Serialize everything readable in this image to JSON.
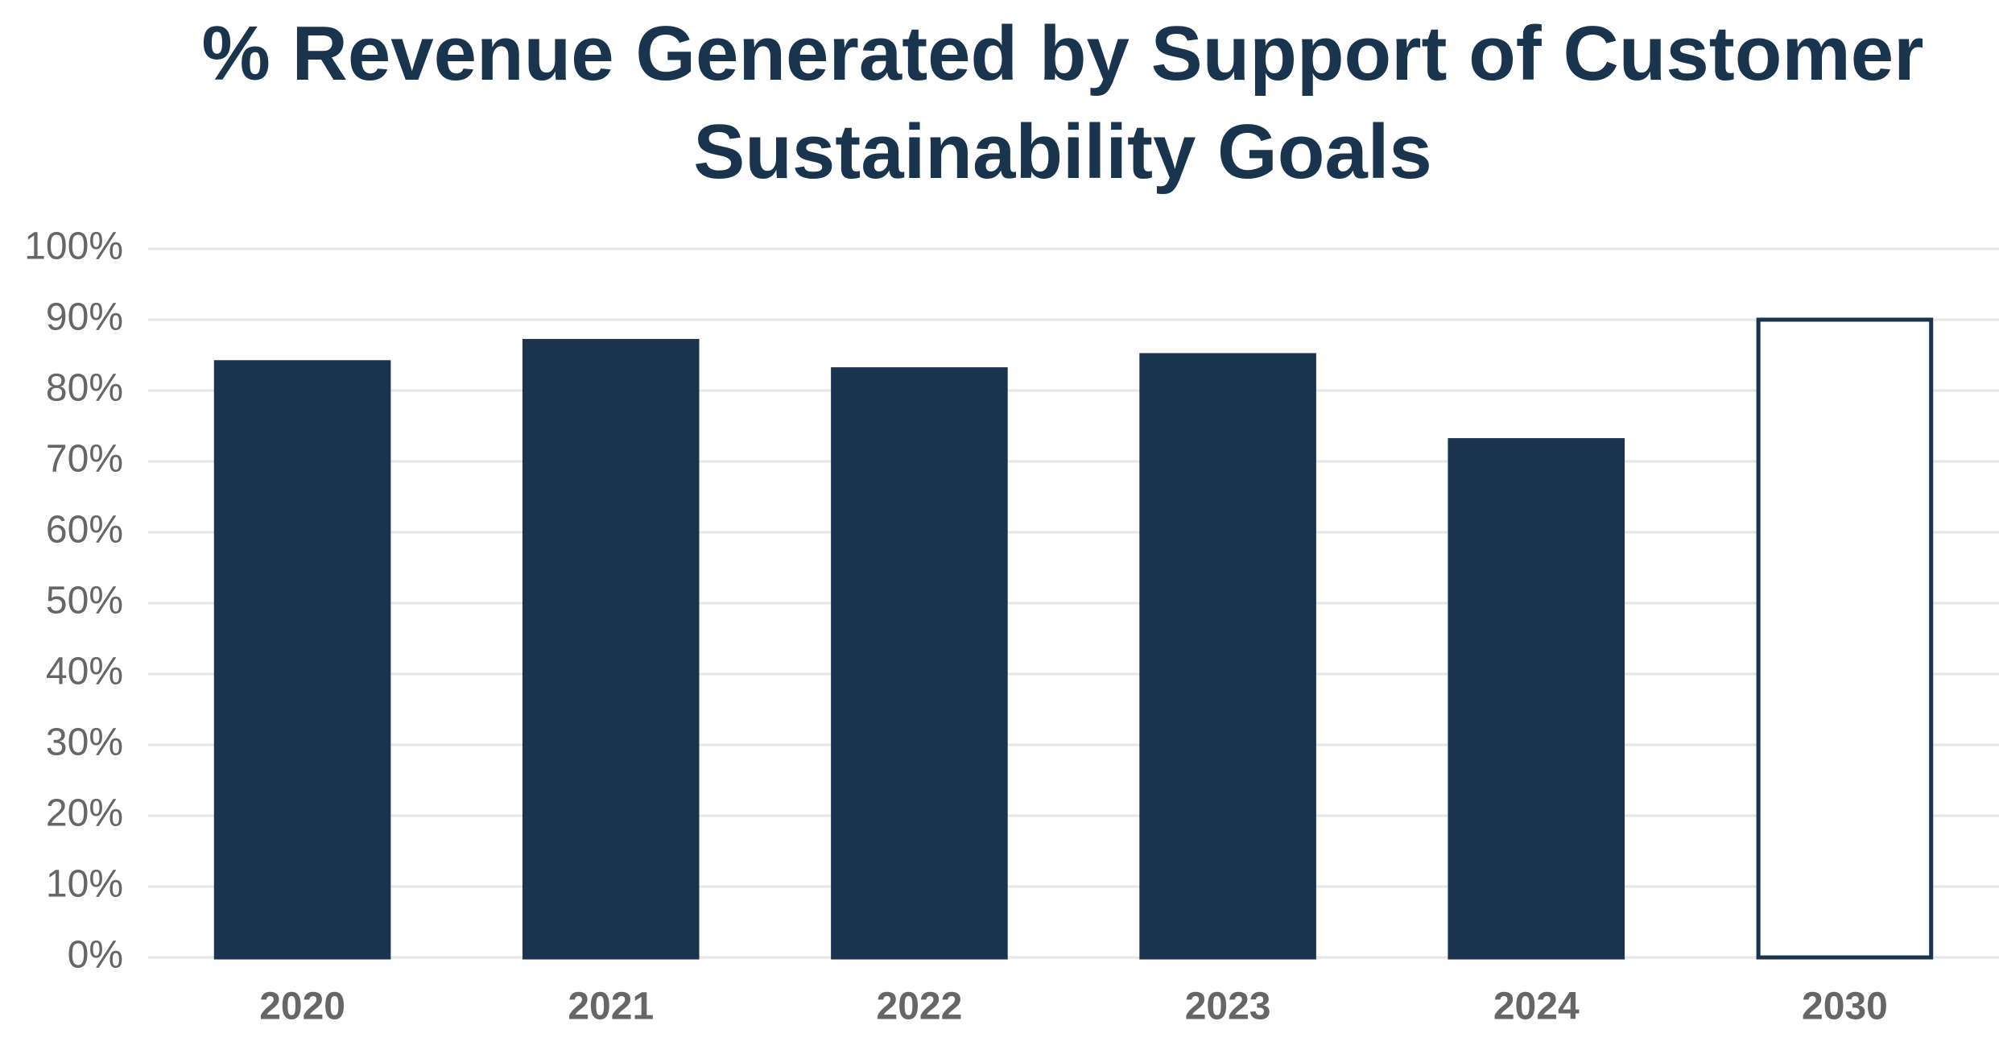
{
  "chart_data": {
    "type": "bar",
    "title": "% Revenue Generated by Support of Customer Sustainability Goals",
    "categories": [
      "2020",
      "2021",
      "2022",
      "2023",
      "2024",
      "2030"
    ],
    "values": [
      84,
      87,
      83,
      85,
      73,
      90
    ],
    "colors": [
      "#1b344d",
      "#1b344d",
      "#1b344d",
      "#1b344d",
      "#1b344d",
      "#ffffff"
    ],
    "edge_color": "#1b344d",
    "ylim": [
      0,
      100
    ],
    "yticks": [
      {
        "value": 0,
        "label": "0%"
      },
      {
        "value": 10,
        "label": "10%"
      },
      {
        "value": 20,
        "label": "20%"
      },
      {
        "value": 30,
        "label": "30%"
      },
      {
        "value": 40,
        "label": "40%"
      },
      {
        "value": 50,
        "label": "50%"
      },
      {
        "value": 60,
        "label": "60%"
      },
      {
        "value": 70,
        "label": "70%"
      },
      {
        "value": 80,
        "label": "80%"
      },
      {
        "value": 90,
        "label": "90%"
      },
      {
        "value": 100,
        "label": "100%"
      }
    ],
    "grid": true
  }
}
